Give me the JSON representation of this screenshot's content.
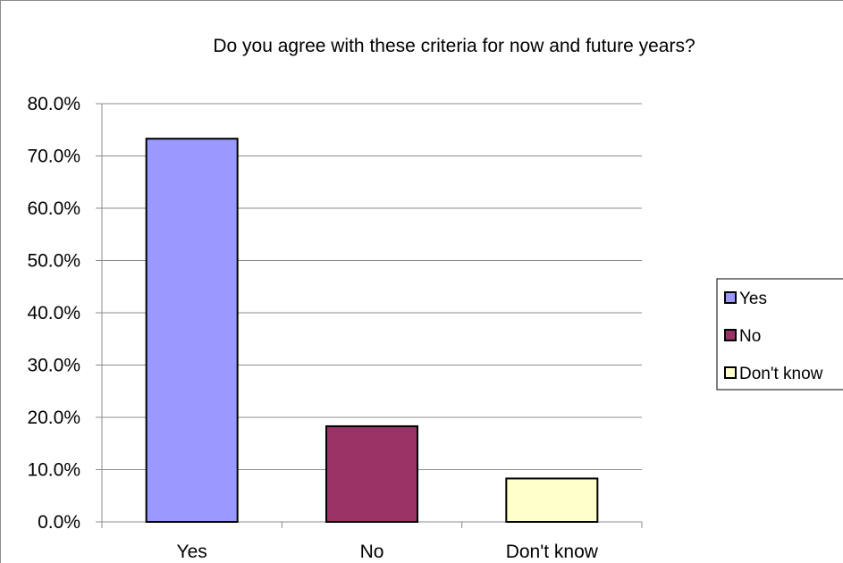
{
  "chart_data": {
    "type": "bar",
    "title": "Do you agree with these criteria for now and future years?",
    "categories": [
      "Yes",
      "No",
      "Don't know"
    ],
    "values": [
      73.3,
      18.3,
      8.3
    ],
    "colors": [
      "#9999ff",
      "#993366",
      "#ffffcc"
    ],
    "ylim": [
      0,
      80
    ],
    "yticks": [
      "0.0%",
      "10.0%",
      "20.0%",
      "30.0%",
      "40.0%",
      "50.0%",
      "60.0%",
      "70.0%",
      "80.0%"
    ],
    "ytick_values": [
      0,
      10,
      20,
      30,
      40,
      50,
      60,
      70,
      80
    ],
    "grid": true,
    "legend": {
      "placement": "right",
      "entries": [
        "Yes",
        "No",
        "Don't know"
      ]
    }
  }
}
